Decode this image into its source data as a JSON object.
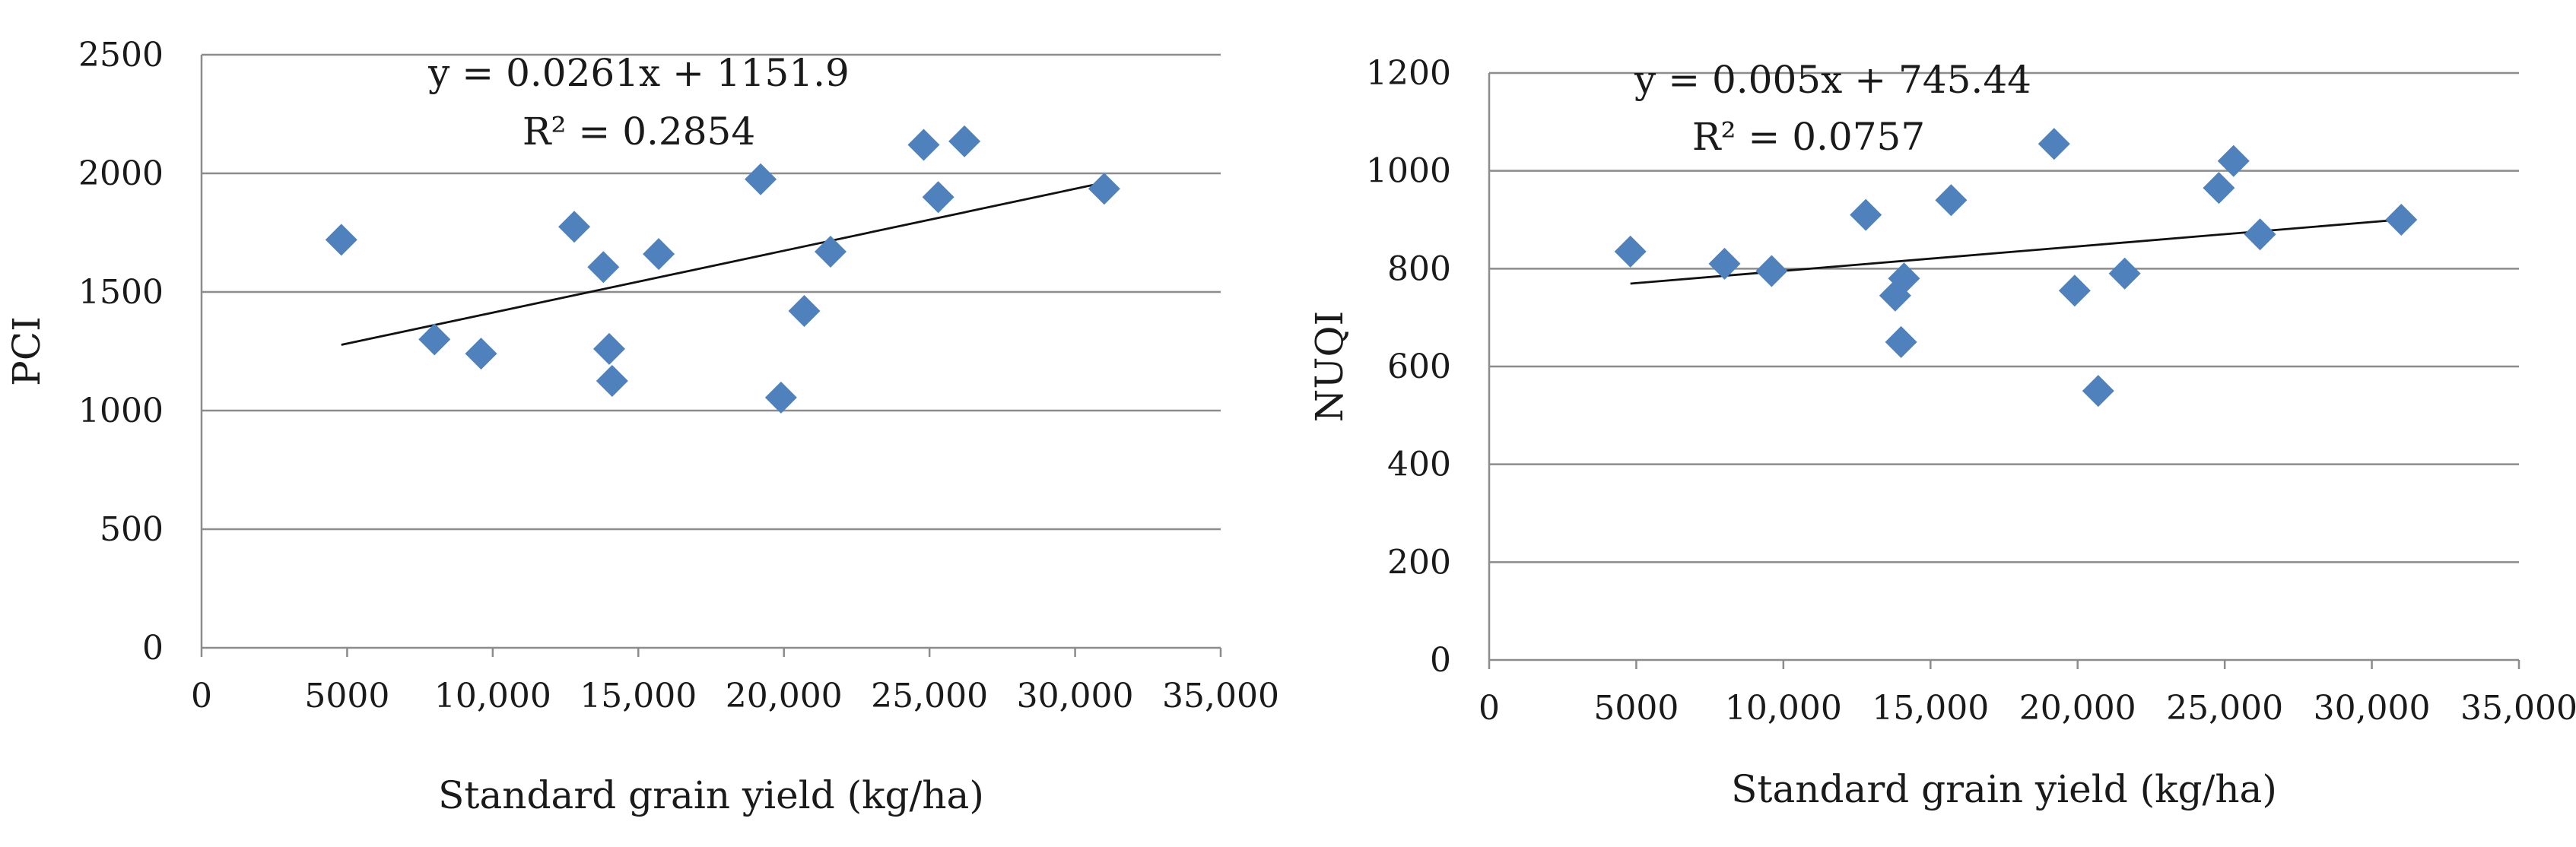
{
  "chart_data": [
    {
      "type": "scatter",
      "title": "",
      "xlabel": "Standard grain yield (kg/ha)",
      "ylabel": "PCI",
      "xlim": [
        0,
        35000
      ],
      "ylim": [
        0,
        2500
      ],
      "x_ticks": [
        0,
        5000,
        10000,
        15000,
        20000,
        25000,
        30000,
        35000
      ],
      "x_tick_labels": [
        "0",
        "5000",
        "10,000",
        "15,000",
        "20,000",
        "25,000",
        "30,000",
        "35,000"
      ],
      "y_ticks": [
        0,
        500,
        1000,
        1500,
        2000,
        2500
      ],
      "y_tick_labels": [
        "0",
        "500",
        "1000",
        "1500",
        "2000",
        "2500"
      ],
      "grid": true,
      "marker_color": "#4f81bd",
      "trendline": {
        "slope": 0.0261,
        "intercept": 1151.9,
        "x_range": [
          4800,
          31000
        ]
      },
      "equation": "y = 0.0261x + 1151.9",
      "r2": "R² = 0.2854",
      "points": [
        {
          "x": 4800,
          "y": 1720
        },
        {
          "x": 8000,
          "y": 1300
        },
        {
          "x": 9600,
          "y": 1240
        },
        {
          "x": 12800,
          "y": 1775
        },
        {
          "x": 13800,
          "y": 1605
        },
        {
          "x": 14000,
          "y": 1260
        },
        {
          "x": 14100,
          "y": 1125
        },
        {
          "x": 15700,
          "y": 1660
        },
        {
          "x": 19200,
          "y": 1975
        },
        {
          "x": 19900,
          "y": 1055
        },
        {
          "x": 20700,
          "y": 1420
        },
        {
          "x": 21600,
          "y": 1670
        },
        {
          "x": 24800,
          "y": 2120
        },
        {
          "x": 25300,
          "y": 1900
        },
        {
          "x": 26200,
          "y": 2135
        },
        {
          "x": 31000,
          "y": 1935
        }
      ]
    },
    {
      "type": "scatter",
      "title": "",
      "xlabel": "Standard grain yield (kg/ha)",
      "ylabel": "NUQI",
      "xlim": [
        0,
        35000
      ],
      "ylim": [
        0,
        1200
      ],
      "x_ticks": [
        0,
        5000,
        10000,
        15000,
        20000,
        25000,
        30000,
        35000
      ],
      "x_tick_labels": [
        "0",
        "5000",
        "10,000",
        "15,000",
        "20,000",
        "25,000",
        "30,000",
        "35,000"
      ],
      "y_ticks": [
        0,
        200,
        400,
        600,
        800,
        1000,
        1200
      ],
      "y_tick_labels": [
        "0",
        "200",
        "400",
        "600",
        "800",
        "1000",
        "1200"
      ],
      "grid": true,
      "marker_color": "#4f81bd",
      "trendline": {
        "slope": 0.005,
        "intercept": 745.44,
        "x_range": [
          4800,
          31000
        ]
      },
      "equation": "y = 0.005x + 745.44",
      "r2": "R² = 0.0757",
      "points": [
        {
          "x": 4800,
          "y": 835
        },
        {
          "x": 8000,
          "y": 810
        },
        {
          "x": 9600,
          "y": 795
        },
        {
          "x": 12800,
          "y": 910
        },
        {
          "x": 13800,
          "y": 745
        },
        {
          "x": 14000,
          "y": 650
        },
        {
          "x": 14100,
          "y": 780
        },
        {
          "x": 15700,
          "y": 940
        },
        {
          "x": 19200,
          "y": 1055
        },
        {
          "x": 19900,
          "y": 755
        },
        {
          "x": 20700,
          "y": 550
        },
        {
          "x": 21600,
          "y": 790
        },
        {
          "x": 24800,
          "y": 965
        },
        {
          "x": 25300,
          "y": 1020
        },
        {
          "x": 26200,
          "y": 870
        },
        {
          "x": 31000,
          "y": 900
        }
      ]
    }
  ]
}
